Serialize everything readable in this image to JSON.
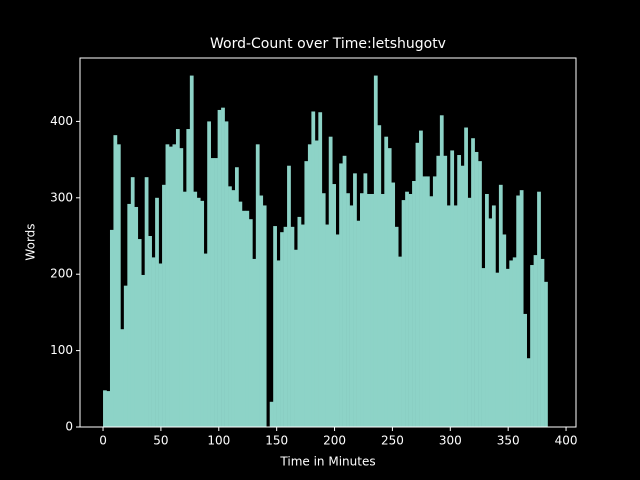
{
  "chart_data": {
    "type": "bar",
    "title": "Word-Count over Time:letshugotv",
    "xlabel": "Time in Minutes",
    "ylabel": "Words",
    "color": "#8dd3c7",
    "bar_width": 3,
    "x": [
      0,
      3,
      6,
      9,
      12,
      15,
      18,
      21,
      24,
      27,
      30,
      33,
      36,
      39,
      42,
      45,
      48,
      51,
      54,
      57,
      60,
      63,
      66,
      69,
      72,
      75,
      78,
      81,
      84,
      87,
      90,
      93,
      96,
      99,
      102,
      105,
      108,
      111,
      114,
      117,
      120,
      123,
      126,
      129,
      132,
      135,
      138,
      141,
      144,
      147,
      150,
      153,
      156,
      159,
      162,
      165,
      168,
      171,
      174,
      177,
      180,
      183,
      186,
      189,
      192,
      195,
      198,
      201,
      204,
      207,
      210,
      213,
      216,
      219,
      222,
      225,
      228,
      231,
      234,
      237,
      240,
      243,
      246,
      249,
      252,
      255,
      258,
      261,
      264,
      267,
      270,
      273,
      276,
      279,
      282,
      285,
      288,
      291,
      294,
      297,
      300,
      303,
      306,
      309,
      312,
      315,
      318,
      321,
      324,
      327,
      330,
      333,
      336,
      339,
      342,
      345,
      348,
      351,
      354,
      357,
      360,
      363,
      366,
      369,
      372,
      375,
      378,
      381
    ],
    "values": [
      48,
      47,
      258,
      382,
      370,
      128,
      185,
      292,
      327,
      288,
      246,
      199,
      327,
      250,
      222,
      300,
      214,
      317,
      370,
      367,
      370,
      390,
      365,
      308,
      390,
      460,
      308,
      300,
      296,
      227,
      400,
      352,
      352,
      415,
      418,
      400,
      315,
      310,
      340,
      295,
      283,
      283,
      272,
      220,
      370,
      303,
      290,
      0,
      33,
      263,
      218,
      255,
      262,
      342,
      262,
      232,
      275,
      265,
      348,
      370,
      413,
      375,
      412,
      306,
      265,
      380,
      318,
      252,
      345,
      355,
      306,
      290,
      332,
      270,
      306,
      332,
      305,
      305,
      460,
      395,
      305,
      380,
      365,
      320,
      262,
      223,
      297,
      308,
      305,
      322,
      372,
      388,
      328,
      328,
      302,
      328,
      355,
      408,
      355,
      290,
      362,
      290,
      356,
      342,
      392,
      300,
      378,
      360,
      348,
      208,
      305,
      273,
      290,
      202,
      317,
      252,
      207,
      218,
      222,
      303,
      310,
      148,
      90,
      212,
      225,
      308,
      220,
      190
    ],
    "xlim": [
      -19.9,
      408.6
    ],
    "xticks": [
      0,
      50,
      100,
      150,
      200,
      250,
      300,
      350,
      400
    ],
    "ylim": [
      0,
      483
    ],
    "yticks": [
      0,
      100,
      200,
      300,
      400
    ]
  }
}
